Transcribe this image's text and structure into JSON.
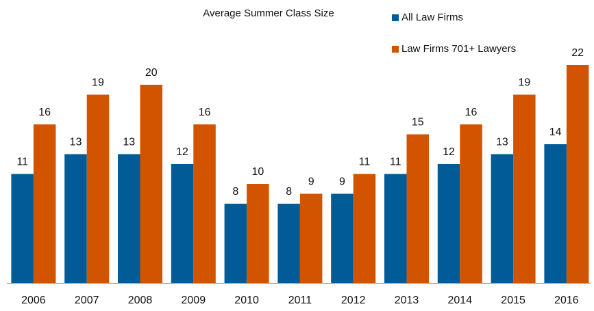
{
  "chart_data": {
    "type": "bar",
    "title": "Average Summer Class Size",
    "categories": [
      "2006",
      "2007",
      "2008",
      "2009",
      "2010",
      "2011",
      "2012",
      "2013",
      "2014",
      "2015",
      "2016"
    ],
    "series": [
      {
        "name": "All Law Firms",
        "color": "#005b96",
        "values": [
          11,
          13,
          13,
          12,
          8,
          8,
          9,
          11,
          12,
          13,
          14
        ]
      },
      {
        "name": "Law Firms 701+ Lawyers",
        "color": "#d35400",
        "values": [
          16,
          19,
          20,
          16,
          10,
          9,
          11,
          15,
          16,
          19,
          22
        ]
      }
    ],
    "legend": "top-right"
  }
}
